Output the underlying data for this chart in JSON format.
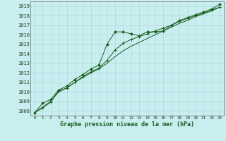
{
  "title": "Graphe pression niveau de la mer (hPa)",
  "bg_color": "#c8eef0",
  "grid_color": "#b0d8dc",
  "line_color": "#1a5c1a",
  "marker_color": "#1a5c1a",
  "xlim": [
    -0.5,
    23.5
  ],
  "ylim": [
    1007.5,
    1019.5
  ],
  "yticks": [
    1008,
    1009,
    1010,
    1011,
    1012,
    1013,
    1014,
    1015,
    1016,
    1017,
    1018,
    1019
  ],
  "xticks": [
    0,
    1,
    2,
    3,
    4,
    5,
    6,
    7,
    8,
    9,
    10,
    11,
    12,
    13,
    14,
    15,
    16,
    17,
    18,
    19,
    20,
    21,
    22,
    23
  ],
  "series1_x": [
    0,
    1,
    2,
    3,
    4,
    5,
    6,
    7,
    8,
    9,
    10,
    11,
    12,
    13,
    14,
    15,
    16,
    17,
    18,
    19,
    20,
    21,
    22,
    23
  ],
  "series1_y": [
    1007.8,
    1008.8,
    1009.2,
    1010.2,
    1010.6,
    1011.3,
    1011.8,
    1012.4,
    1012.8,
    1015.0,
    1016.3,
    1016.3,
    1016.1,
    1015.9,
    1016.3,
    1016.3,
    1016.4,
    1017.0,
    1017.5,
    1017.8,
    1018.1,
    1018.4,
    1018.7,
    1019.2
  ],
  "series2_x": [
    0,
    1,
    2,
    3,
    4,
    5,
    6,
    7,
    8,
    9,
    10,
    11,
    12,
    13,
    14,
    15,
    16,
    17,
    18,
    19,
    20,
    21,
    22,
    23
  ],
  "series2_y": [
    1007.8,
    1008.4,
    1009.0,
    1010.0,
    1010.4,
    1011.0,
    1011.5,
    1012.0,
    1012.4,
    1013.0,
    1013.7,
    1014.3,
    1014.8,
    1015.2,
    1015.6,
    1016.0,
    1016.4,
    1016.8,
    1017.2,
    1017.5,
    1017.9,
    1018.2,
    1018.5,
    1018.9
  ],
  "series3_x": [
    0,
    1,
    2,
    3,
    4,
    5,
    6,
    7,
    8,
    9,
    10,
    11,
    12,
    13,
    14,
    15,
    16,
    17,
    18,
    19,
    20,
    21,
    22,
    23
  ],
  "series3_y": [
    1007.8,
    1008.3,
    1008.9,
    1010.1,
    1010.4,
    1011.0,
    1011.6,
    1012.1,
    1012.5,
    1013.3,
    1014.4,
    1015.1,
    1015.5,
    1015.8,
    1016.1,
    1016.4,
    1016.7,
    1017.0,
    1017.4,
    1017.7,
    1018.0,
    1018.3,
    1018.6,
    1018.9
  ]
}
